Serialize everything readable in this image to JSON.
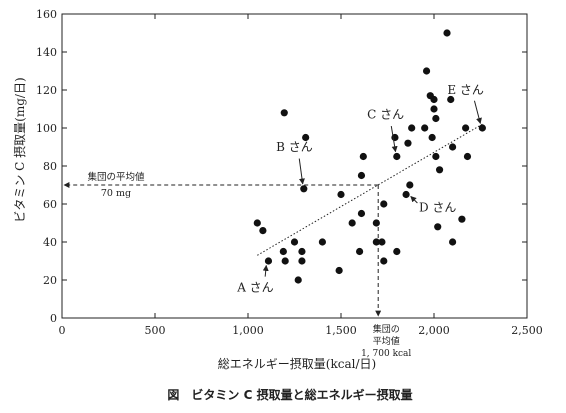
{
  "chart_data": {
    "type": "scatter",
    "caption": "図　ビタミン C 摂取量と総エネルギー摂取量",
    "xlabel": "総エネルギー摂取量(kcal/日)",
    "ylabel": "ビタミン C 摂取量(mg/日)",
    "xlim": [
      0,
      2500
    ],
    "ylim": [
      0,
      160
    ],
    "x_ticks": [
      0,
      500,
      1000,
      1500,
      2000,
      2500
    ],
    "x_tick_labels": [
      "0",
      "500",
      "1,000",
      "1,500",
      "2,000",
      "2,500"
    ],
    "y_ticks": [
      0,
      20,
      40,
      60,
      80,
      100,
      120,
      140,
      160
    ],
    "y_tick_labels": [
      "0",
      "20",
      "40",
      "60",
      "80",
      "100",
      "120",
      "140",
      "160"
    ],
    "grid": false,
    "points": [
      {
        "x": 1050,
        "y": 50
      },
      {
        "x": 1080,
        "y": 46
      },
      {
        "x": 1110,
        "y": 30
      },
      {
        "x": 1190,
        "y": 35
      },
      {
        "x": 1200,
        "y": 30
      },
      {
        "x": 1195,
        "y": 108
      },
      {
        "x": 1250,
        "y": 40
      },
      {
        "x": 1270,
        "y": 20
      },
      {
        "x": 1290,
        "y": 30
      },
      {
        "x": 1290,
        "y": 35
      },
      {
        "x": 1300,
        "y": 68
      },
      {
        "x": 1310,
        "y": 95
      },
      {
        "x": 1400,
        "y": 40
      },
      {
        "x": 1490,
        "y": 25
      },
      {
        "x": 1500,
        "y": 65
      },
      {
        "x": 1560,
        "y": 50
      },
      {
        "x": 1600,
        "y": 35
      },
      {
        "x": 1610,
        "y": 55
      },
      {
        "x": 1610,
        "y": 75
      },
      {
        "x": 1620,
        "y": 85
      },
      {
        "x": 1690,
        "y": 50
      },
      {
        "x": 1690,
        "y": 40
      },
      {
        "x": 1720,
        "y": 40
      },
      {
        "x": 1730,
        "y": 60
      },
      {
        "x": 1730,
        "y": 30
      },
      {
        "x": 1790,
        "y": 95
      },
      {
        "x": 1800,
        "y": 85
      },
      {
        "x": 1800,
        "y": 35
      },
      {
        "x": 1850,
        "y": 65
      },
      {
        "x": 1860,
        "y": 92
      },
      {
        "x": 1870,
        "y": 70
      },
      {
        "x": 1880,
        "y": 100
      },
      {
        "x": 1950,
        "y": 100
      },
      {
        "x": 1960,
        "y": 130
      },
      {
        "x": 1980,
        "y": 117
      },
      {
        "x": 1990,
        "y": 95
      },
      {
        "x": 2000,
        "y": 115
      },
      {
        "x": 2000,
        "y": 110
      },
      {
        "x": 2010,
        "y": 105
      },
      {
        "x": 2010,
        "y": 85
      },
      {
        "x": 2020,
        "y": 48
      },
      {
        "x": 2030,
        "y": 78
      },
      {
        "x": 2070,
        "y": 150
      },
      {
        "x": 2090,
        "y": 115
      },
      {
        "x": 2100,
        "y": 90
      },
      {
        "x": 2100,
        "y": 40
      },
      {
        "x": 2150,
        "y": 52
      },
      {
        "x": 2170,
        "y": 100
      },
      {
        "x": 2180,
        "y": 85
      },
      {
        "x": 2260,
        "y": 100
      }
    ],
    "trend_line": {
      "x1": 1050,
      "y1": 33,
      "x2": 2260,
      "y2": 102
    },
    "mean_x": {
      "value": 1700,
      "label_lines": [
        "集団の",
        "平均値",
        "1, 700 kcal"
      ]
    },
    "mean_y": {
      "value": 70,
      "label_lines": [
        "集団の平均値",
        "70 mg"
      ]
    },
    "annotations": [
      {
        "text": "A さん",
        "x": 1040,
        "y": 14,
        "target_x": 1110,
        "target_y": 30
      },
      {
        "text": "B さん",
        "x": 1250,
        "y": 88,
        "target_x": 1300,
        "target_y": 68
      },
      {
        "text": "C さん",
        "x": 1740,
        "y": 105,
        "target_x": 1800,
        "target_y": 85
      },
      {
        "text": "D さん",
        "x": 2020,
        "y": 56,
        "target_x": 1850,
        "target_y": 65
      },
      {
        "text": "E さん",
        "x": 2170,
        "y": 118,
        "target_x": 2260,
        "target_y": 100
      }
    ]
  }
}
